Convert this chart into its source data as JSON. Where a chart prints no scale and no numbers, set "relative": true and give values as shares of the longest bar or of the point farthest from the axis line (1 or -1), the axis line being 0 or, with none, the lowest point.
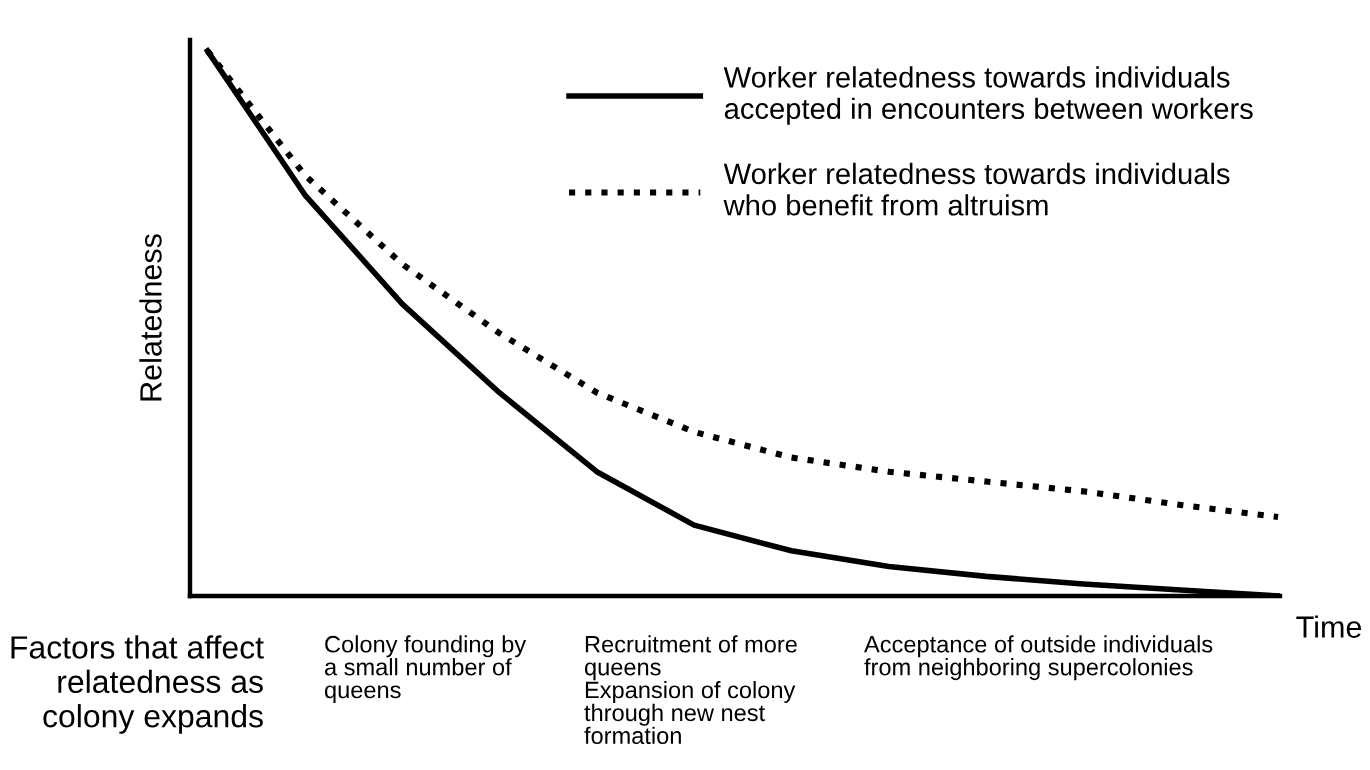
{
  "chart_data": {
    "type": "line",
    "relative": true,
    "ylabel": "Relatedness",
    "xlabel": "Time",
    "categories": [
      null,
      null,
      null,
      null,
      null,
      null,
      null,
      null,
      null,
      null,
      null,
      null
    ],
    "series": [
      {
        "name": "Worker relatedness towards individuals\naccepted in encounters between workers",
        "color": "#000000",
        "line_style": "solid",
        "values": [
          1.0,
          0.736,
          0.536,
          0.373,
          0.228,
          0.13,
          0.083,
          0.054,
          0.036,
          0.022,
          0.011,
          0.0
        ]
      },
      {
        "name": "Worker relatedness towards individuals\nwho benefit from altruism",
        "color": "#000000",
        "line_style": "dotted",
        "values": [
          1.0,
          0.772,
          0.609,
          0.482,
          0.373,
          0.301,
          0.254,
          0.228,
          0.21,
          0.192,
          0.167,
          0.145
        ]
      }
    ],
    "legend": "top right",
    "marker": "none",
    "annotations": [
      "Factors that affect\nrelatedness as\ncolony expands",
      "Colony founding by\na small number of\nqueens",
      "Recruitment of more\nqueens\nExpansion of colony\nthrough new nest\nformation",
      "Acceptance of outside individuals\nfrom neighboring supercolonies"
    ]
  }
}
